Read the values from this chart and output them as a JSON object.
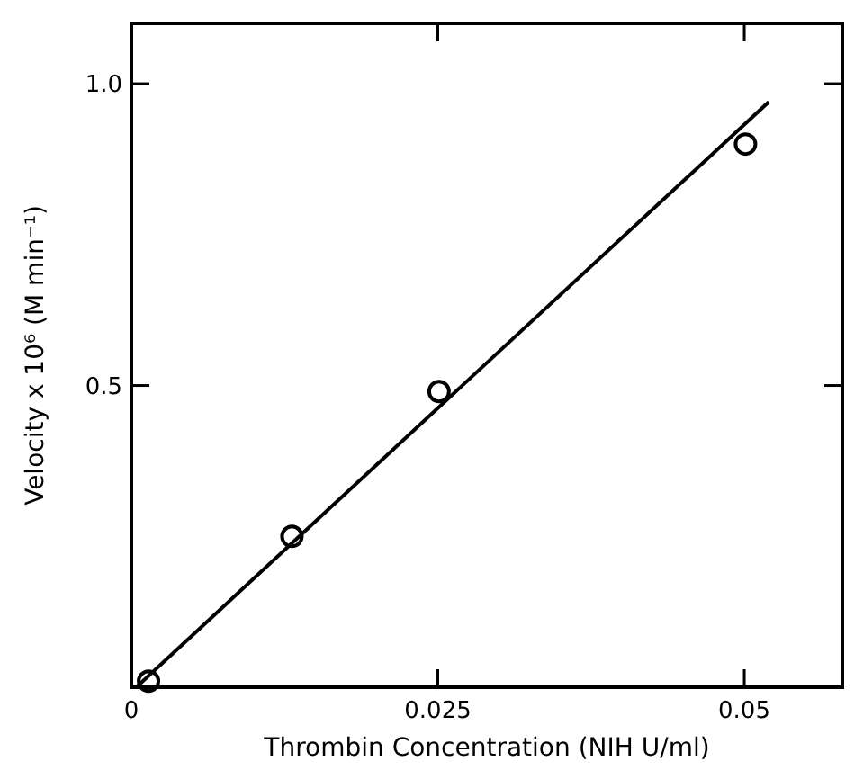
{
  "chart_data": {
    "type": "scatter",
    "xlabel": "Thrombin  Concentration (NIH U/ml)",
    "ylabel": "Velocity x 10⁶  (M min⁻¹)",
    "xlim": [
      0,
      0.058
    ],
    "ylim": [
      0,
      1.1
    ],
    "xticks": [
      0,
      {
        "value": 0.025,
        "label": "0.025"
      },
      {
        "value": 0.05,
        "label": "0.05"
      }
    ],
    "yticks": [
      {
        "value": 0,
        "label": null
      },
      {
        "value": 0.5,
        "label": "0.5"
      },
      {
        "value": 1.0,
        "label": "1.0"
      }
    ],
    "grid": false,
    "marker": "circle",
    "series": [
      {
        "color": "#000000",
        "x": [
          0.0014,
          0.0131,
          0.0251,
          0.0501
        ],
        "values": [
          0.01,
          0.25,
          0.49,
          0.9
        ]
      },
      {
        "type": "line",
        "color": "#000000",
        "line_style": "solid",
        "marker": "none",
        "x": [
          0.0004,
          0.052
        ],
        "values": [
          0,
          0.97
        ]
      }
    ]
  }
}
